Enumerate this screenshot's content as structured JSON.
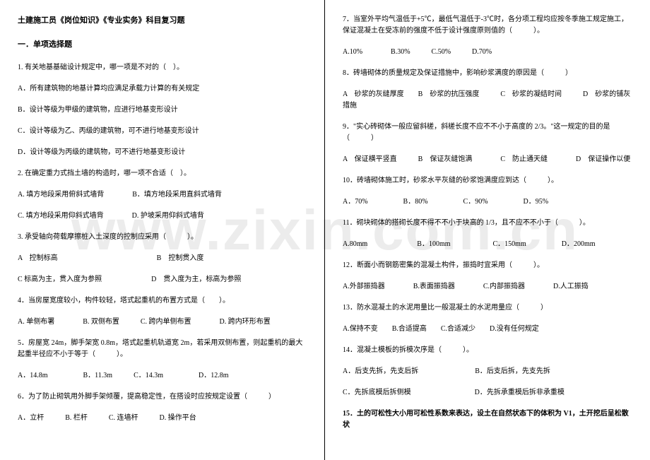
{
  "watermark": "www.zixin.com.cn",
  "left": {
    "title": "土建施工员《岗位知识》《专业实务》科目复习题",
    "section": "一．单项选择题",
    "q1": "1. 有关地基基础设计规定中，哪一项是不对的（　）。",
    "q1a": "A．所有建筑物的地基计算均应满足承载力计算的有关规定",
    "q1b": "B．设计等级为甲级的建筑物，应进行地基变形设计",
    "q1c": "C．设计等级为乙、丙级的建筑物，可不进行地基变形设计",
    "q1d": "D．设计等级为丙级的建筑物，可不进行地基变形设计",
    "q2": "2. 在确定重力式挡土墙的构造时，哪一项不合适（　）。",
    "q2ab": "A. 填方地段采用俯斜式墙背　　　　B．填方地段采用直斜式墙背",
    "q2cd": "C. 填方地段采用仰斜式墙背　　　　D. 护坡采用仰斜式墙背",
    "q3": "3. 承受轴向荷载摩擦桩入土深度的控制应采用（　　　）。",
    "q3ab": "A　控制标高　　　　　　　　　　　　　　B　控制贯入度",
    "q3cd": " C 标高为主，贯入度为参照　　　　　　　D　贯入度为主，标高为参照",
    "q4": "4．当房屋宽度较小，构件较轻，塔式起重机的布置方式是（　　）。",
    "q4opts": "A. 单侧布署　　　　B. 双侧布置　　　C. 跨内单侧布置　　　　D. 跨内环形布置",
    "q5": "5．房屋宽 24m，脚手架宽 0.8m，塔式起重机轨道宽 2m，若采用双侧布置，则起重机的最大起重半径应不小于等于（　　　）。",
    "q5opts": "A．14.8m　　　　　B．11.3m　　　C．14.3m　　　　　D．12.8m",
    "q6": "6．为了防止砌筑用外脚手架倾覆，提高稳定性，在搭设时应按规定设置（　　　）",
    "q6opts": "A．立杆　　　B. 栏杆　　　C. 连墙杆　　　D. 操作平台"
  },
  "right": {
    "q7": "7．当室外平均气温低于+5℃，最低气温低于-3℃时，各分项工程均应按冬季施工规定施工，保证混凝土在受冻前的强度不低于设计强度原则值的（　　　）。",
    "q7opts": "A.10%　　　　B.30%　　　C.50%　　　D.70%",
    "q8": "8．砖墙砌体的质量规定及保证措施中，影响砂浆满度的原因是（　　　）",
    "q8opts": "A　砂浆的灰缝厚度　　B　砂浆的抗压强度　　　C　砂浆的凝结时间　　　D　砂浆的铺灰措施",
    "q9": "9．\"实心砖砌体一般应留斜槎，斜槎长度不应不不小于高度的 2/3。\"这一规定的目的是（　　　）",
    "q9opts": "A　保证横平竖直　　　B　保证灰缝饱满　　　　C　防止通天缝　　　　D　保证操作以便",
    "q10": "10．砖墙砌体施工时，砂浆水平灰缝的砂浆饱满度应到达（　　　）。",
    "q10opts": "A．70%　　　　　B．80%　　　　　C．90%　　　　　D．95%",
    "q11": "11．砌块砌体的搭砌长度不得不不小于块高的 1/3，且不应不不小于（　　　）。",
    "q11opts": "A.80mm　　　　　　　B．100mm　　　　　　C．150mm　　　　　D．200mm",
    "q12": "12．断面小而钢筋密集的混凝土构件，振捣时宜采用（　　　）。",
    "q12opts": "A.外部振捣器　　　　B.表面振捣器　　　　C.内部振捣器　　　　D.人工振捣",
    "q13": "13．防水混凝土的水泥用量比一般混凝土的水泥用量应（　　　）",
    "q13opts": "A.保持不变　　B.合适提高　　C.合适减少　　D.没有任何规定",
    "q14": "14．混凝土模板的拆模次序是（　　　）。",
    "q14ab": "A．后支先拆，先支后拆　　　　　　　　B．后支后拆，先支先拆",
    "q14cd": "C．先拆底模后拆侧模　　　　　　　　　D．先拆承重模后拆非承重模",
    "q15": "15．土的可松性大小用可松性系数来表达，设土在自然状态下的体积为 V1，土开挖后呈松散状"
  }
}
